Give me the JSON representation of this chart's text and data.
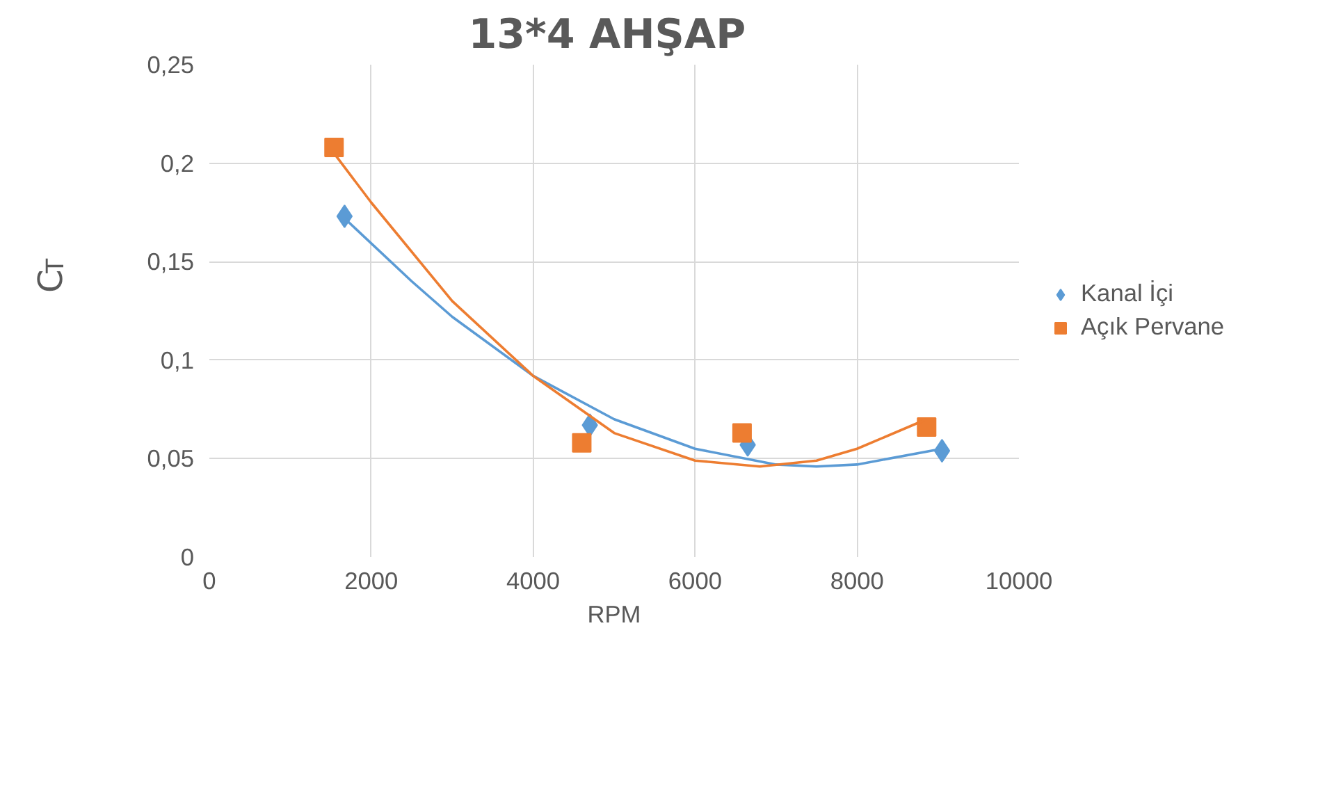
{
  "chart_data": {
    "type": "scatter",
    "title": "13*4  AHŞAP",
    "xlabel": "RPM",
    "ylabel": "C$_{T}$",
    "xlim": [
      0,
      10000
    ],
    "xticks": [
      0,
      2000,
      4000,
      6000,
      8000,
      10000
    ],
    "ylim": [
      0,
      0.25
    ],
    "yticks": [
      {
        "value": 0,
        "label": "0"
      },
      {
        "value": 0.05,
        "label": "0,05"
      },
      {
        "value": 0.1,
        "label": "0,1"
      },
      {
        "value": 0.15,
        "label": "0,15"
      },
      {
        "value": 0.2,
        "label": "0,2"
      },
      {
        "value": 0.25,
        "label": "0,25"
      }
    ],
    "grid": true,
    "legend": "right",
    "series": [
      {
        "name": "Kanal İçi",
        "color": "#5b9bd5",
        "marker": "diamond",
        "x": [
          1670,
          4700,
          6650,
          9050
        ],
        "values": [
          0.173,
          0.067,
          0.057,
          0.054
        ]
      },
      {
        "name": "Açık Pervane",
        "color": "#ed7d31",
        "marker": "square",
        "x": [
          1540,
          4600,
          6580,
          8860
        ],
        "values": [
          0.208,
          0.058,
          0.063,
          0.066
        ]
      },
      {
        "type": "line",
        "color": "#5b9bd5",
        "x": [
          1670,
          2500,
          3000,
          4000,
          5000,
          6000,
          7000,
          7500,
          8000,
          9050
        ],
        "values": [
          0.172,
          0.14,
          0.122,
          0.092,
          0.07,
          0.055,
          0.047,
          0.046,
          0.047,
          0.055
        ]
      },
      {
        "type": "line",
        "color": "#ed7d31",
        "x": [
          1540,
          2000,
          3000,
          4000,
          5000,
          6000,
          6800,
          7500,
          8000,
          8860
        ],
        "values": [
          0.205,
          0.18,
          0.13,
          0.092,
          0.063,
          0.049,
          0.046,
          0.049,
          0.055,
          0.07
        ]
      }
    ]
  }
}
